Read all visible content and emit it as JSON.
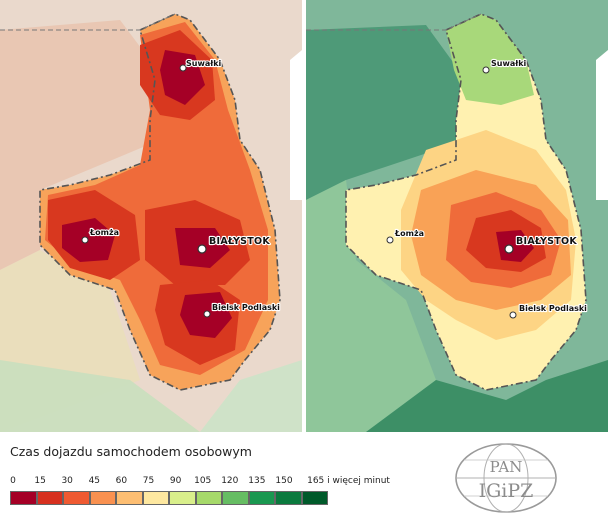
{
  "maps": [
    {
      "cities": [
        {
          "name": "Suwałki",
          "big": false
        },
        {
          "name": "Łomża",
          "big": false
        },
        {
          "name": "BIAŁYSTOK",
          "big": true
        },
        {
          "name": "Bielsk Podlaski",
          "big": false
        }
      ]
    },
    {
      "cities": [
        {
          "name": "Suwałki",
          "big": false
        },
        {
          "name": "Łomża",
          "big": false
        },
        {
          "name": "BIAŁYSTOK",
          "big": true
        },
        {
          "name": "Bielsk Podlaski",
          "big": false
        }
      ]
    }
  ],
  "legend": {
    "title": "Czas dojazdu samochodem osobowym",
    "ticks": [
      "0",
      "15",
      "30",
      "45",
      "60",
      "75",
      "90",
      "105",
      "120",
      "135",
      "150",
      "165 i więcej minut"
    ],
    "colors": [
      "#a50026",
      "#d7301f",
      "#ef5a32",
      "#f99150",
      "#fdbe72",
      "#fee8a0",
      "#d9ef8b",
      "#a6d96a",
      "#66bd63",
      "#1a9850",
      "#0b7a3e",
      "#005a2a"
    ]
  },
  "logo": {
    "top": "PAN",
    "bottom": "IGiPZ"
  }
}
